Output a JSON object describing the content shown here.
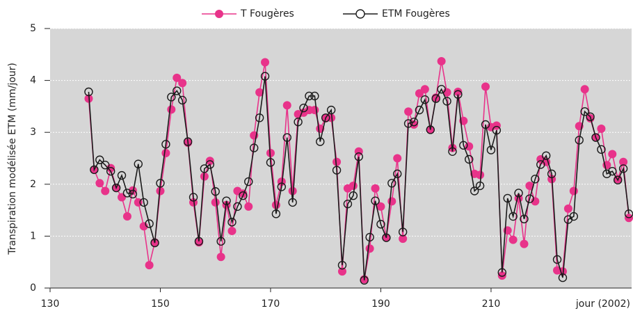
{
  "chart_data": {
    "type": "line",
    "y_label": "Transpiration modélisée ETM (mm/jour)",
    "x_label": "jour (2002)",
    "x": [
      137,
      138,
      139,
      140,
      141,
      142,
      143,
      144,
      145,
      146,
      147,
      148,
      149,
      150,
      151,
      152,
      153,
      154,
      155,
      156,
      157,
      158,
      159,
      160,
      161,
      162,
      163,
      164,
      165,
      166,
      167,
      168,
      169,
      170,
      171,
      172,
      173,
      174,
      175,
      176,
      177,
      178,
      179,
      180,
      181,
      182,
      183,
      184,
      185,
      186,
      187,
      188,
      189,
      190,
      191,
      192,
      193,
      194,
      195,
      196,
      197,
      198,
      199,
      200,
      201,
      202,
      203,
      204,
      205,
      206,
      207,
      208,
      209,
      210,
      211,
      212,
      213,
      214,
      215,
      216,
      217,
      218,
      219,
      220,
      221,
      222,
      223,
      224,
      225,
      226,
      227,
      228,
      229,
      230,
      231,
      232,
      233,
      234,
      235
    ],
    "series": [
      {
        "name": "T Fougères",
        "color": "#e8338a",
        "marker": "filled",
        "values": [
          3.65,
          2.28,
          2.02,
          1.87,
          2.31,
          1.93,
          1.75,
          1.38,
          1.88,
          1.65,
          1.19,
          0.44,
          0.88,
          1.87,
          2.6,
          3.44,
          4.05,
          3.95,
          2.8,
          1.65,
          0.88,
          2.15,
          2.45,
          1.65,
          0.6,
          1.6,
          1.1,
          1.87,
          1.82,
          1.57,
          2.94,
          3.77,
          4.35,
          2.6,
          1.6,
          2.05,
          3.52,
          1.87,
          3.35,
          3.38,
          3.43,
          3.43,
          3.07,
          3.27,
          3.28,
          2.43,
          0.32,
          1.92,
          1.97,
          2.63,
          0.17,
          0.76,
          1.92,
          1.57,
          0.97,
          1.67,
          2.5,
          0.95,
          3.4,
          3.15,
          3.75,
          3.83,
          3.05,
          3.67,
          4.37,
          3.77,
          2.7,
          3.78,
          3.22,
          2.73,
          2.2,
          2.18,
          3.88,
          3.1,
          3.13,
          0.24,
          1.11,
          0.93,
          1.73,
          0.85,
          1.97,
          1.67,
          2.48,
          2.43,
          2.1,
          0.34,
          0.32,
          1.53,
          1.87,
          3.12,
          3.83,
          3.27,
          2.9,
          3.07,
          2.37,
          2.58,
          2.1,
          2.43,
          1.35
        ]
      },
      {
        "name": "ETM Fougères",
        "color": "#1a1a1a",
        "marker": "open",
        "values": [
          3.78,
          2.28,
          2.47,
          2.37,
          2.25,
          1.93,
          2.17,
          1.83,
          1.81,
          2.39,
          1.65,
          1.24,
          0.87,
          2.02,
          2.77,
          3.68,
          3.8,
          3.62,
          2.82,
          1.75,
          0.9,
          2.3,
          2.38,
          1.86,
          0.9,
          1.68,
          1.27,
          1.57,
          1.78,
          2.05,
          2.7,
          3.28,
          4.08,
          2.42,
          1.43,
          1.95,
          2.9,
          1.65,
          3.2,
          3.47,
          3.7,
          3.7,
          2.82,
          3.28,
          3.43,
          2.27,
          0.44,
          1.62,
          1.78,
          2.53,
          0.15,
          0.98,
          1.68,
          1.23,
          0.97,
          2.02,
          2.2,
          1.08,
          3.17,
          3.2,
          3.43,
          3.63,
          3.05,
          3.65,
          3.83,
          3.6,
          2.63,
          3.73,
          2.75,
          2.48,
          1.87,
          1.97,
          3.15,
          2.66,
          3.04,
          0.3,
          1.73,
          1.38,
          1.83,
          1.33,
          1.72,
          2.1,
          2.38,
          2.55,
          2.2,
          0.55,
          0.2,
          1.32,
          1.38,
          2.85,
          3.4,
          3.3,
          2.9,
          2.67,
          2.2,
          2.25,
          2.08,
          2.3,
          1.43
        ]
      }
    ],
    "xlim": [
      130,
      235.5
    ],
    "xticks": [
      130,
      150,
      170,
      190,
      210
    ],
    "ylim": [
      0,
      5
    ],
    "yticks": [
      0,
      1,
      2,
      3,
      4,
      5
    ],
    "grid": true,
    "legend": "top"
  }
}
